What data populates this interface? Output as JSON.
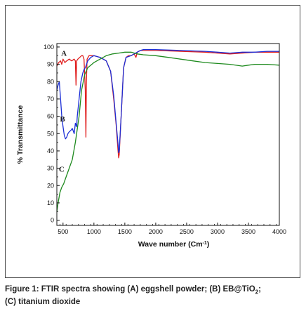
{
  "chart_data": {
    "type": "line",
    "xlabel": "Wave number (Cm",
    "xlabel_sup": "-1",
    "xlabel_end": ")",
    "ylabel": "% Transmittance",
    "xlim": [
      400,
      4000
    ],
    "ylim": [
      -3,
      102
    ],
    "xticks": [
      500,
      1000,
      1500,
      2000,
      2500,
      3000,
      3500,
      4000
    ],
    "yticks": [
      0,
      10,
      20,
      30,
      40,
      50,
      60,
      70,
      80,
      90,
      100
    ],
    "grid": false,
    "annotations": [
      {
        "text": "A",
        "x": 470,
        "y": 95
      },
      {
        "text": "B",
        "x": 450,
        "y": 57
      },
      {
        "text": "C",
        "x": 432,
        "y": 28
      }
    ],
    "series": [
      {
        "color": "#e01e1e",
        "points": [
          [
            400,
            89
          ],
          [
            430,
            91
          ],
          [
            460,
            92
          ],
          [
            480,
            90
          ],
          [
            500,
            93
          ],
          [
            530,
            91
          ],
          [
            560,
            92
          ],
          [
            600,
            93
          ],
          [
            640,
            92
          ],
          [
            680,
            93
          ],
          [
            700,
            92
          ],
          [
            710,
            78
          ],
          [
            720,
            92
          ],
          [
            740,
            93
          ],
          [
            770,
            94
          ],
          [
            800,
            95
          ],
          [
            820,
            95
          ],
          [
            840,
            93
          ],
          [
            860,
            75
          ],
          [
            870,
            48
          ],
          [
            878,
            80
          ],
          [
            890,
            93
          ],
          [
            920,
            95
          ],
          [
            1000,
            95
          ],
          [
            1100,
            94
          ],
          [
            1200,
            92
          ],
          [
            1270,
            86
          ],
          [
            1320,
            70
          ],
          [
            1360,
            55
          ],
          [
            1390,
            40
          ],
          [
            1400,
            36
          ],
          [
            1410,
            38
          ],
          [
            1440,
            60
          ],
          [
            1480,
            88
          ],
          [
            1520,
            94
          ],
          [
            1560,
            95
          ],
          [
            1600,
            95
          ],
          [
            1650,
            96
          ],
          [
            1680,
            94
          ],
          [
            1700,
            97
          ],
          [
            1750,
            98
          ],
          [
            1800,
            98
          ],
          [
            2000,
            98
          ],
          [
            2400,
            97.5
          ],
          [
            2800,
            97
          ],
          [
            3000,
            96.5
          ],
          [
            3200,
            96
          ],
          [
            3400,
            96.5
          ],
          [
            3600,
            97
          ],
          [
            3800,
            97
          ],
          [
            4000,
            97
          ]
        ]
      },
      {
        "color": "#1b2ed6",
        "points": [
          [
            400,
            75
          ],
          [
            420,
            78
          ],
          [
            440,
            80
          ],
          [
            460,
            70
          ],
          [
            480,
            60
          ],
          [
            500,
            54
          ],
          [
            520,
            49
          ],
          [
            540,
            47
          ],
          [
            560,
            48
          ],
          [
            580,
            50
          ],
          [
            600,
            51
          ],
          [
            630,
            52
          ],
          [
            650,
            53
          ],
          [
            680,
            50
          ],
          [
            700,
            56
          ],
          [
            720,
            54
          ],
          [
            730,
            60
          ],
          [
            760,
            70
          ],
          [
            790,
            80
          ],
          [
            820,
            85
          ],
          [
            840,
            87
          ],
          [
            860,
            88
          ],
          [
            880,
            90
          ],
          [
            900,
            92
          ],
          [
            950,
            94
          ],
          [
            1000,
            95
          ],
          [
            1100,
            94
          ],
          [
            1200,
            92
          ],
          [
            1270,
            86
          ],
          [
            1320,
            72
          ],
          [
            1360,
            56
          ],
          [
            1390,
            44
          ],
          [
            1400,
            39
          ],
          [
            1410,
            40
          ],
          [
            1440,
            60
          ],
          [
            1480,
            88
          ],
          [
            1520,
            94
          ],
          [
            1600,
            95
          ],
          [
            1650,
            96
          ],
          [
            1700,
            97
          ],
          [
            1750,
            98
          ],
          [
            1800,
            98.5
          ],
          [
            2000,
            98.5
          ],
          [
            2400,
            98
          ],
          [
            2800,
            97.5
          ],
          [
            3000,
            97
          ],
          [
            3200,
            96.5
          ],
          [
            3400,
            97
          ],
          [
            3600,
            97
          ],
          [
            3800,
            97.5
          ],
          [
            4000,
            97.5
          ]
        ]
      },
      {
        "color": "#1e8a1e",
        "points": [
          [
            400,
            5
          ],
          [
            420,
            10
          ],
          [
            450,
            16
          ],
          [
            480,
            19
          ],
          [
            510,
            21
          ],
          [
            550,
            25
          ],
          [
            600,
            30
          ],
          [
            650,
            35
          ],
          [
            700,
            45
          ],
          [
            760,
            60
          ],
          [
            800,
            75
          ],
          [
            850,
            84
          ],
          [
            900,
            88
          ],
          [
            1000,
            91
          ],
          [
            1100,
            93
          ],
          [
            1200,
            95
          ],
          [
            1300,
            96
          ],
          [
            1400,
            96.5
          ],
          [
            1500,
            97
          ],
          [
            1600,
            97
          ],
          [
            1700,
            96
          ],
          [
            1800,
            95.5
          ],
          [
            2000,
            95
          ],
          [
            2200,
            94
          ],
          [
            2400,
            93
          ],
          [
            2600,
            92
          ],
          [
            2800,
            91
          ],
          [
            3000,
            90.5
          ],
          [
            3200,
            90
          ],
          [
            3400,
            89
          ],
          [
            3500,
            89.5
          ],
          [
            3600,
            90
          ],
          [
            3800,
            90
          ],
          [
            4000,
            89.5
          ]
        ]
      }
    ]
  },
  "caption": {
    "prefix": "Figure 1:  FTIR spectra showing (A) eggshell powder; (B) EB@TiO",
    "sub": "2",
    "suffix": ";",
    "line2": "(C) titanium dioxide"
  }
}
